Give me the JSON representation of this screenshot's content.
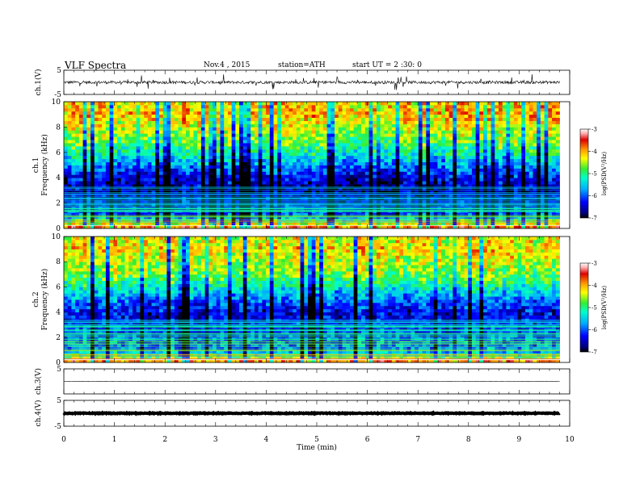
{
  "header": {
    "title": "VLF  Spectra",
    "date": "Nov.4  , 2015",
    "station": "station=ATH",
    "start": "start  UT  =   2  :30: 0"
  },
  "chart_data": {
    "type": "heatmap",
    "title": "VLF  Spectra",
    "xlabel": "Time  (min)",
    "xlim": [
      0,
      10
    ],
    "x_ticks": [
      "0",
      "1",
      "2",
      "3",
      "4",
      "5",
      "6",
      "7",
      "8",
      "9",
      "10"
    ],
    "data_end_min": 9.8,
    "panels": [
      {
        "kind": "waveform",
        "ylabel": "ch.1(V)",
        "ylim": [
          -5,
          5
        ],
        "y_ticks": [
          "5",
          "-5"
        ],
        "mean": 0,
        "noise_amplitude": 0.6,
        "spikes": true
      },
      {
        "kind": "spectrogram",
        "ylabel_channel": "ch.1",
        "ylabel": "Frequency  (kHz)",
        "ylim": [
          0,
          10
        ],
        "y_ticks": [
          "0",
          "2",
          "4",
          "6",
          "8",
          "10"
        ],
        "colorbar": {
          "label": "log(PSD(V²/Hz)",
          "range": [
            -7,
            -3
          ],
          "ticks": [
            "-3",
            "-4",
            "-5",
            "-6",
            "-7"
          ]
        },
        "profile_khz_to_logpsd": [
          [
            0,
            -3.4
          ],
          [
            0.5,
            -4.8
          ],
          [
            1.0,
            -6.0
          ],
          [
            2.0,
            -6.4
          ],
          [
            3.0,
            -6.6
          ],
          [
            4.0,
            -6.4
          ],
          [
            5.0,
            -5.8
          ],
          [
            6.0,
            -5.2
          ],
          [
            7.0,
            -4.7
          ],
          [
            8.0,
            -4.4
          ],
          [
            9.0,
            -4.0
          ],
          [
            10.0,
            -4.2
          ]
        ]
      },
      {
        "kind": "spectrogram",
        "ylabel_channel": "ch.2",
        "ylabel": "Frequency  (kHz)",
        "ylim": [
          0,
          10
        ],
        "y_ticks": [
          "0",
          "2",
          "4",
          "6",
          "8",
          "10"
        ],
        "colorbar": {
          "label": "log(PSD(V²/Hz)",
          "range": [
            -7,
            -3
          ],
          "ticks": [
            "-3",
            "-4",
            "-5",
            "-6",
            "-7"
          ]
        },
        "profile_khz_to_logpsd": [
          [
            0,
            -3.5
          ],
          [
            0.5,
            -5.0
          ],
          [
            1.0,
            -5.8
          ],
          [
            2.0,
            -6.0
          ],
          [
            3.0,
            -6.3
          ],
          [
            4.0,
            -6.4
          ],
          [
            5.0,
            -5.9
          ],
          [
            6.0,
            -5.3
          ],
          [
            7.0,
            -4.7
          ],
          [
            8.0,
            -4.5
          ],
          [
            9.0,
            -4.2
          ],
          [
            10.0,
            -4.4
          ]
        ]
      },
      {
        "kind": "waveform",
        "ylabel": "ch.3(V)",
        "ylim": [
          -5,
          5
        ],
        "y_ticks": [
          "5"
        ],
        "mean": 0,
        "noise_amplitude": 0.05,
        "spikes": false
      },
      {
        "kind": "waveform",
        "ylabel": "ch.4(V)",
        "ylim": [
          -5,
          5
        ],
        "y_ticks": [
          "5",
          "-5"
        ],
        "mean": 0,
        "noise_amplitude": 0.15,
        "spikes": false,
        "thick": true
      }
    ]
  }
}
